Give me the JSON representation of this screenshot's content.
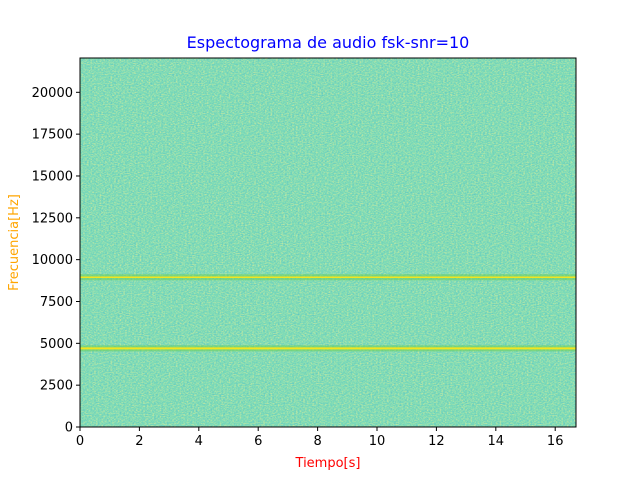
{
  "chart_data": {
    "type": "heatmap",
    "title": "Espectograma de audio fsk-snr=10",
    "xlabel": "Tiempo[s]",
    "ylabel": "Frecuencia[Hz]",
    "xlim": [
      0,
      16.7
    ],
    "ylim": [
      0,
      22050
    ],
    "x_ticks": [
      0,
      2,
      4,
      6,
      8,
      10,
      12,
      14,
      16
    ],
    "y_ticks": [
      0,
      2500,
      5000,
      7500,
      10000,
      12500,
      15000,
      17500,
      20000
    ],
    "tone_frequencies_hz": [
      4700,
      8950
    ],
    "colors": {
      "title": "#0000ff",
      "xlabel": "#ff0000",
      "ylabel": "#ffa500",
      "background_low": "#1f9e89",
      "background_mid": "#35b779",
      "background_high": "#6ece58",
      "tone_line": "#f2e51e"
    }
  }
}
